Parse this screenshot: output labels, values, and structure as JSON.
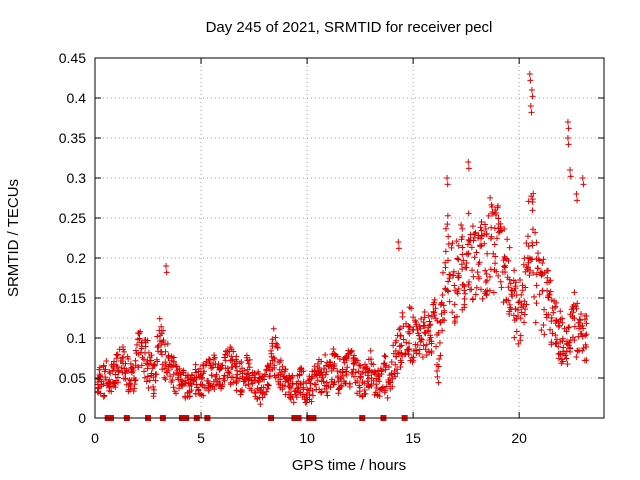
{
  "chart_data": {
    "type": "scatter",
    "title": "Day 245 of 2021, SRMTID for receiver pecl",
    "xlabel": "GPS time / hours",
    "ylabel": "SRMTID / TECUs",
    "xlim": [
      0,
      24
    ],
    "ylim": [
      0,
      0.45
    ],
    "x_ticks": [
      {
        "value": 0,
        "label": "0"
      },
      {
        "value": 5,
        "label": "5"
      },
      {
        "value": 10,
        "label": "10"
      },
      {
        "value": 15,
        "label": "15"
      },
      {
        "value": 20,
        "label": "20"
      }
    ],
    "y_ticks": [
      {
        "value": 0,
        "label": "0"
      },
      {
        "value": 0.05,
        "label": "0.05"
      },
      {
        "value": 0.1,
        "label": "0.1"
      },
      {
        "value": 0.15,
        "label": "0.15"
      },
      {
        "value": 0.2,
        "label": "0.2"
      },
      {
        "value": 0.25,
        "label": "0.25"
      },
      {
        "value": 0.3,
        "label": "0.3"
      },
      {
        "value": 0.35,
        "label": "0.35"
      },
      {
        "value": 0.4,
        "label": "0.4"
      },
      {
        "value": 0.45,
        "label": "0.45"
      }
    ],
    "grid": true,
    "marker": "+",
    "color": "#e00000",
    "series": [
      {
        "name": "SRMTID",
        "x": [
          0.0,
          0.2,
          0.4,
          0.6,
          0.8,
          1.0,
          1.2,
          1.4,
          1.6,
          1.8,
          2.0,
          2.2,
          2.4,
          2.6,
          2.8,
          3.0,
          3.2,
          3.4,
          3.6,
          3.8,
          4.0,
          4.2,
          4.4,
          4.6,
          4.8,
          5.0,
          5.2,
          5.4,
          5.6,
          5.8,
          6.0,
          6.2,
          6.4,
          6.6,
          6.8,
          7.0,
          7.2,
          7.4,
          7.6,
          7.8,
          8.0,
          8.2,
          8.4,
          8.6,
          8.8,
          9.0,
          9.2,
          9.4,
          9.6,
          9.8,
          10.0,
          10.2,
          10.4,
          10.6,
          10.8,
          11.0,
          11.2,
          11.4,
          11.6,
          11.8,
          12.0,
          12.2,
          12.4,
          12.6,
          12.8,
          13.0,
          13.2,
          13.4,
          13.6,
          13.8,
          14.0,
          14.2,
          14.4,
          14.6,
          14.8,
          15.0,
          15.2,
          15.4,
          15.6,
          15.8,
          16.0,
          16.2,
          16.4,
          16.6,
          16.8,
          17.0,
          17.2,
          17.4,
          17.6,
          17.8,
          18.0,
          18.2,
          18.4,
          18.6,
          18.8,
          19.0,
          19.2,
          19.4,
          19.6,
          19.8,
          20.0,
          20.2,
          20.4,
          20.6,
          20.8,
          21.0,
          21.2,
          21.4,
          21.6,
          21.8,
          22.0,
          22.2,
          22.4,
          22.6,
          22.8,
          23.0
        ],
        "y": [
          0.05,
          0.05,
          0.045,
          0.055,
          0.05,
          0.06,
          0.07,
          0.065,
          0.05,
          0.045,
          0.08,
          0.09,
          0.075,
          0.06,
          0.05,
          0.1,
          0.085,
          0.07,
          0.06,
          0.05,
          0.045,
          0.04,
          0.035,
          0.04,
          0.05,
          0.045,
          0.05,
          0.055,
          0.06,
          0.05,
          0.055,
          0.06,
          0.065,
          0.06,
          0.055,
          0.05,
          0.06,
          0.045,
          0.04,
          0.035,
          0.04,
          0.05,
          0.085,
          0.07,
          0.05,
          0.045,
          0.04,
          0.035,
          0.04,
          0.045,
          0.035,
          0.04,
          0.05,
          0.055,
          0.06,
          0.05,
          0.065,
          0.055,
          0.05,
          0.06,
          0.07,
          0.055,
          0.05,
          0.045,
          0.05,
          0.06,
          0.05,
          0.045,
          0.055,
          0.05,
          0.06,
          0.08,
          0.09,
          0.12,
          0.11,
          0.1,
          0.09,
          0.11,
          0.095,
          0.1,
          0.12,
          0.07,
          0.15,
          0.2,
          0.18,
          0.16,
          0.2,
          0.17,
          0.22,
          0.19,
          0.2,
          0.21,
          0.18,
          0.22,
          0.2,
          0.23,
          0.2,
          0.18,
          0.16,
          0.14,
          0.13,
          0.15,
          0.2,
          0.25,
          0.18,
          0.16,
          0.15,
          0.14,
          0.12,
          0.11,
          0.1,
          0.09,
          0.1,
          0.12,
          0.11,
          0.1
        ],
        "spread": [
          0.02,
          0.02,
          0.02,
          0.02,
          0.02,
          0.02,
          0.025,
          0.025,
          0.02,
          0.02,
          0.03,
          0.03,
          0.03,
          0.025,
          0.02,
          0.03,
          0.03,
          0.025,
          0.025,
          0.02,
          0.02,
          0.02,
          0.015,
          0.02,
          0.02,
          0.02,
          0.02,
          0.02,
          0.025,
          0.02,
          0.025,
          0.025,
          0.03,
          0.025,
          0.025,
          0.02,
          0.025,
          0.02,
          0.02,
          0.015,
          0.02,
          0.02,
          0.03,
          0.025,
          0.02,
          0.02,
          0.02,
          0.015,
          0.02,
          0.02,
          0.015,
          0.02,
          0.02,
          0.025,
          0.025,
          0.02,
          0.025,
          0.025,
          0.02,
          0.025,
          0.03,
          0.025,
          0.02,
          0.02,
          0.02,
          0.025,
          0.02,
          0.02,
          0.025,
          0.02,
          0.025,
          0.03,
          0.03,
          0.04,
          0.035,
          0.03,
          0.03,
          0.035,
          0.03,
          0.03,
          0.04,
          0.03,
          0.05,
          0.06,
          0.05,
          0.05,
          0.06,
          0.05,
          0.06,
          0.05,
          0.05,
          0.06,
          0.05,
          0.06,
          0.05,
          0.06,
          0.05,
          0.05,
          0.05,
          0.04,
          0.04,
          0.05,
          0.06,
          0.07,
          0.05,
          0.05,
          0.05,
          0.04,
          0.04,
          0.035,
          0.03,
          0.03,
          0.03,
          0.04,
          0.035,
          0.03
        ]
      }
    ],
    "peaks": [
      {
        "x": 3.35,
        "y": 0.19
      },
      {
        "x": 14.3,
        "y": 0.22
      },
      {
        "x": 16.6,
        "y": 0.3
      },
      {
        "x": 17.6,
        "y": 0.32
      },
      {
        "x": 20.5,
        "y": 0.43
      },
      {
        "x": 20.6,
        "y": 0.41
      },
      {
        "x": 20.55,
        "y": 0.39
      },
      {
        "x": 22.3,
        "y": 0.37
      },
      {
        "x": 22.3,
        "y": 0.35
      },
      {
        "x": 22.4,
        "y": 0.31
      },
      {
        "x": 22.7,
        "y": 0.28
      },
      {
        "x": 23.0,
        "y": 0.3
      }
    ],
    "gaps_x": [
      0.6,
      0.75,
      1.5,
      2.5,
      3.2,
      4.1,
      4.3,
      4.8,
      5.3,
      8.3,
      9.4,
      9.6,
      10.1,
      10.3,
      12.6,
      13.6,
      14.6
    ]
  }
}
